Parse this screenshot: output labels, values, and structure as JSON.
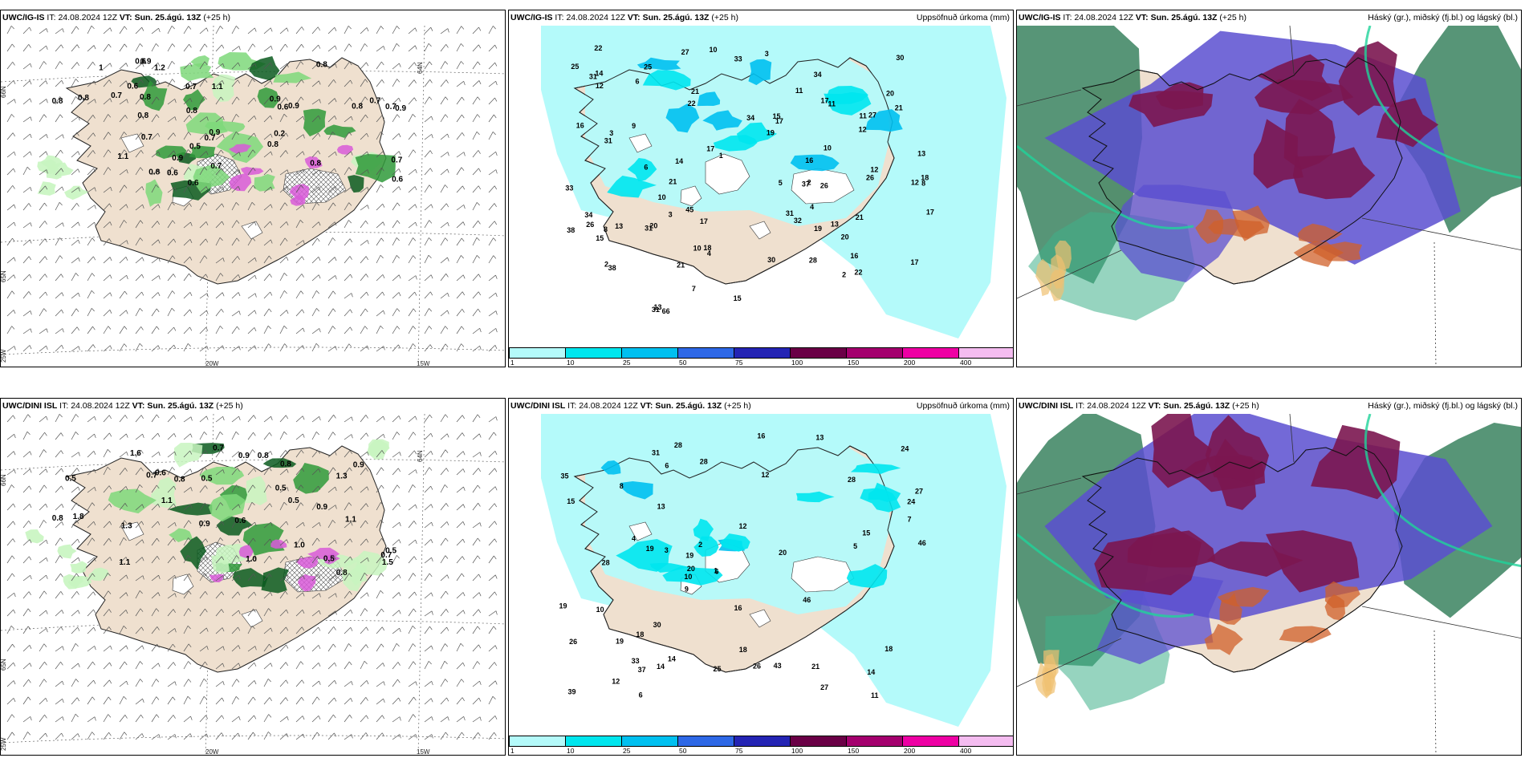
{
  "panels": [
    {
      "id": "r1c1",
      "model": "UWC/IG-IS",
      "issue_label": "IT:",
      "issue": "24.08.2024 12Z",
      "valid_label": "VT:",
      "valid": "Sun. 25.ágú. 13Z",
      "lead": "(+25 h)",
      "right_title": "",
      "axis_labels": [
        "20W",
        "15W",
        "66N",
        "65N",
        "64N",
        "25W"
      ]
    },
    {
      "id": "r1c2",
      "model": "UWC/IG-IS",
      "issue_label": "IT:",
      "issue": "24.08.2024 12Z",
      "valid_label": "VT:",
      "valid": "Sun. 25.ágú. 13Z",
      "lead": "(+25 h)",
      "right_title": "Uppsöfnuð úrkoma (mm)"
    },
    {
      "id": "r1c3",
      "model": "UWC/IG-IS",
      "issue_label": "IT:",
      "issue": "24.08.2024 12Z",
      "valid_label": "VT:",
      "valid": "Sun. 25.ágú. 13Z",
      "lead": "(+25 h)",
      "right_title": "Háský (gr.), miðský (fj.bl.) og lágský (bl.)"
    },
    {
      "id": "r2c1",
      "model": "UWC/DINI ISL",
      "issue_label": "IT:",
      "issue": "24.08.2024 12Z",
      "valid_label": "VT:",
      "valid": "Sun. 25.ágú. 13Z",
      "lead": "(+25 h)",
      "right_title": "",
      "axis_labels": [
        "20W",
        "15W",
        "66N",
        "65N",
        "64N",
        "25W"
      ]
    },
    {
      "id": "r2c2",
      "model": "UWC/DINI ISL",
      "issue_label": "IT:",
      "issue": "24.08.2024 12Z",
      "valid_label": "VT:",
      "valid": "Sun. 25.ágú. 13Z",
      "lead": "(+25 h)",
      "right_title": "Uppsöfnuð úrkoma (mm)"
    },
    {
      "id": "r2c3",
      "model": "UWC/DINI ISL",
      "issue_label": "IT:",
      "issue": "24.08.2024 12Z",
      "valid_label": "VT:",
      "valid": "Sun. 25.ágú. 13Z",
      "lead": "(+25 h)",
      "right_title": "Háský (gr.), miðský (fj.bl.) og lágský (bl.)"
    }
  ],
  "precip_legend": {
    "labels": [
      "1",
      "10",
      "25",
      "50",
      "75",
      "100",
      "150",
      "200",
      "400"
    ],
    "colors": [
      "#b4fafa",
      "#00e6ee",
      "#00c0f0",
      "#2e68e6",
      "#2424b4",
      "#6a0046",
      "#a4006e",
      "#ee00a4",
      "#f4bcf0"
    ]
  },
  "precip_values": {
    "r1c2": [
      "37",
      "38",
      "21",
      "33",
      "25",
      "31",
      "13",
      "22",
      "25",
      "17",
      "17",
      "20",
      "26",
      "38",
      "34",
      "17",
      "13",
      "31",
      "28",
      "22",
      "18",
      "14",
      "12",
      "21",
      "26",
      "20",
      "22",
      "19",
      "30",
      "11",
      "27",
      "34",
      "16",
      "17",
      "15",
      "17",
      "10",
      "20",
      "13",
      "66",
      "45",
      "19",
      "26",
      "14",
      "27",
      "31",
      "12",
      "10",
      "32",
      "30",
      "31",
      "34",
      "11",
      "9",
      "10",
      "21",
      "15",
      "21",
      "17",
      "11",
      "8",
      "12",
      "18",
      "10",
      "16",
      "16",
      "15",
      "21",
      "31",
      "12",
      "33",
      "4",
      "13",
      "3",
      "2",
      "6",
      "2",
      "1",
      "3",
      "2",
      "3",
      "8",
      "4",
      "5",
      "6",
      "7"
    ],
    "r2c2": [
      "13",
      "33",
      "27",
      "15",
      "19",
      "26",
      "28",
      "21",
      "35",
      "28",
      "43",
      "46",
      "24",
      "39",
      "14",
      "19",
      "20",
      "37",
      "11",
      "18",
      "19",
      "28",
      "27",
      "25",
      "12",
      "24",
      "10",
      "14",
      "10",
      "31",
      "16",
      "15",
      "18",
      "12",
      "6",
      "28",
      "46",
      "19",
      "13",
      "18",
      "20",
      "16",
      "26",
      "14",
      "9",
      "7",
      "6",
      "4",
      "5",
      "3",
      "2",
      "1",
      "8",
      "6",
      "12",
      "30"
    ]
  },
  "wind_values": {
    "r1c1": [
      "0.5",
      "0.8",
      "0.8",
      "0.6",
      "0.8",
      "0.7",
      "0.7",
      "0.2",
      "0.9",
      "0.7",
      "0.6",
      "1.2",
      "0.6",
      "0.9",
      "0.8",
      "0.8",
      "0.6",
      "0.8",
      "0.6",
      "0.7",
      "0.7",
      "0.7",
      "0.9",
      "0.8",
      "1.1",
      "0.6",
      "0.8",
      "0.9",
      "0.7",
      "1",
      "0.7",
      "0.9",
      "1.1",
      "0.8",
      "0.8",
      "0.9"
    ],
    "r2c1": [
      "0.9",
      "0.8",
      "0.5",
      "1.1",
      "1.6",
      "0.9",
      "0.8",
      "0.6",
      "0.7",
      "1.3",
      "0.8",
      "1.0",
      "0.6",
      "0.9",
      "1.5",
      "0.7",
      "1.0",
      "0.5",
      "0.7",
      "0.5",
      "0.8",
      "1.1",
      "0.9",
      "0.5",
      "1.3",
      "0.5",
      "1.1",
      "0.5",
      "0.8",
      "1.8"
    ]
  }
}
